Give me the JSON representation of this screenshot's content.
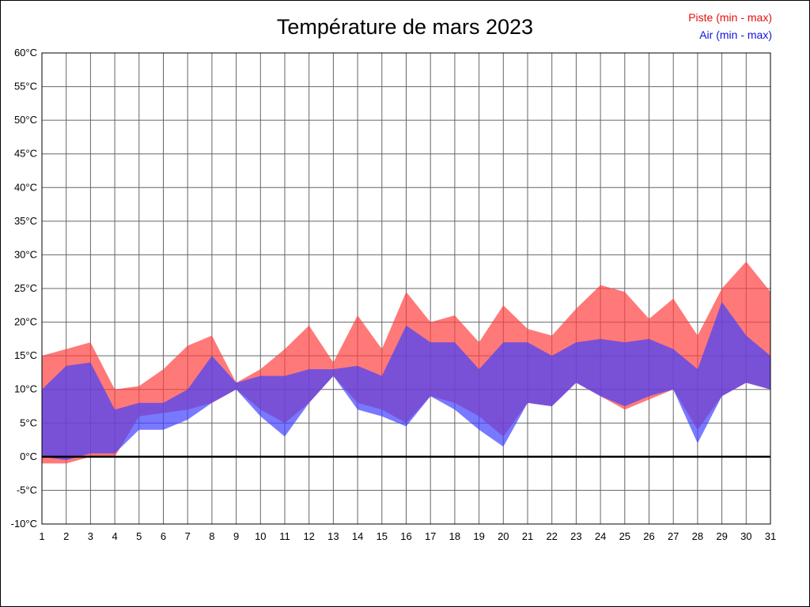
{
  "page": {
    "background": "#ffffff",
    "border_color": "#000000"
  },
  "chart_data": {
    "type": "area",
    "title": "Température de mars 2023",
    "xlabel": "",
    "ylabel": "",
    "x": [
      1,
      2,
      3,
      4,
      5,
      6,
      7,
      8,
      9,
      10,
      11,
      12,
      13,
      14,
      15,
      16,
      17,
      18,
      19,
      20,
      21,
      22,
      23,
      24,
      25,
      26,
      27,
      28,
      29,
      30,
      31
    ],
    "ylim": [
      -10,
      60
    ],
    "y_ticks": {
      "values": [
        -10,
        -5,
        0,
        5,
        10,
        15,
        20,
        25,
        30,
        35,
        40,
        45,
        50,
        55,
        60
      ],
      "labels": [
        "-10°C",
        "-5°C",
        "0°C",
        "5°C",
        "10°C",
        "15°C",
        "20°C",
        "25°C",
        "30°C",
        "35°C",
        "40°C",
        "45°C",
        "50°C",
        "55°C",
        "60°C"
      ]
    },
    "grid": true,
    "grid_color": "#666666",
    "zero_line": {
      "value": 0,
      "color": "#000000",
      "width": 2.5
    },
    "legend_position": "top-right",
    "series": [
      {
        "name": "Piste (min - max)",
        "fill": "#ff4040",
        "opacity": 0.7,
        "legend_color": "#e30f0f",
        "min": [
          -1,
          -1,
          0,
          0,
          6,
          6.5,
          7,
          8,
          10,
          7,
          5,
          8,
          12,
          8,
          7,
          5,
          9,
          8,
          6,
          3,
          8,
          7.5,
          11,
          9,
          7,
          8.5,
          10,
          4,
          9,
          11,
          10
        ],
        "max": [
          15,
          16,
          17,
          10,
          10.5,
          13,
          16.5,
          18,
          11,
          13,
          16,
          19.5,
          14,
          21,
          16,
          24.5,
          20,
          21,
          17,
          22.5,
          19,
          18,
          22,
          25.5,
          24.5,
          20.5,
          23.5,
          18,
          25,
          29,
          24.5
        ]
      },
      {
        "name": "Air (min - max)",
        "fill": "#4040ff",
        "opacity": 0.7,
        "legend_color": "#1414dd",
        "min": [
          0,
          -0.5,
          0.5,
          0.5,
          4,
          4,
          5.5,
          8,
          10,
          6,
          3,
          8,
          12,
          7,
          6,
          4.5,
          9,
          7,
          4,
          1.5,
          8,
          7.5,
          11,
          9,
          7.5,
          9,
          10,
          2,
          9,
          11,
          10
        ],
        "max": [
          10,
          13.5,
          14,
          7,
          8,
          8,
          10,
          15,
          11,
          12,
          12,
          13,
          13,
          13.5,
          12,
          19.5,
          17,
          17,
          13,
          17,
          17,
          15,
          17,
          17.5,
          17,
          17.5,
          16,
          13,
          23,
          18,
          15
        ]
      }
    ]
  },
  "legend": {
    "piste_label": "Piste (min - max)",
    "air_label": "Air (min - max)"
  }
}
